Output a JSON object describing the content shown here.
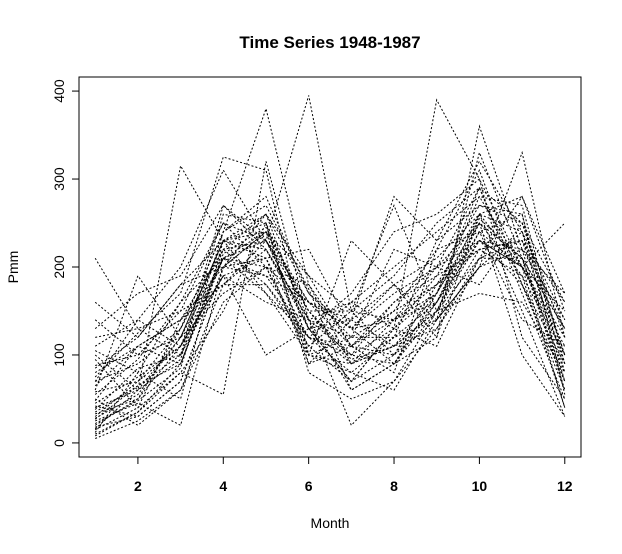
{
  "chart_data": {
    "type": "line",
    "title": "Time Series 1948-1987",
    "xlabel": "Month",
    "ylabel": "Pmm",
    "x": [
      1,
      2,
      3,
      4,
      5,
      6,
      7,
      8,
      9,
      10,
      11,
      12
    ],
    "xticks": [
      2,
      4,
      6,
      8,
      10,
      12
    ],
    "yticks": [
      0,
      100,
      200,
      300,
      400
    ],
    "xlim": [
      0.62,
      12.38
    ],
    "ylim": [
      -16,
      416
    ],
    "line_style": "dotted",
    "line_color": "#000000",
    "grid": false,
    "series": [
      {
        "values": [
          10,
          35,
          90,
          215,
          245,
          150,
          95,
          110,
          170,
          255,
          210,
          70
        ]
      },
      {
        "values": [
          20,
          50,
          110,
          230,
          260,
          170,
          130,
          140,
          200,
          290,
          250,
          100
        ]
      },
      {
        "values": [
          50,
          20,
          60,
          180,
          220,
          140,
          60,
          90,
          150,
          240,
          200,
          40
        ]
      },
      {
        "values": [
          80,
          110,
          140,
          200,
          190,
          120,
          100,
          160,
          190,
          220,
          230,
          130
        ]
      },
      {
        "values": [
          30,
          70,
          130,
          240,
          380,
          180,
          110,
          80,
          220,
          310,
          180,
          90
        ]
      },
      {
        "values": [
          120,
          130,
          100,
          210,
          230,
          395,
          150,
          100,
          160,
          230,
          200,
          150
        ]
      },
      {
        "values": [
          5,
          25,
          60,
          160,
          200,
          110,
          70,
          130,
          390,
          300,
          120,
          50
        ]
      },
      {
        "values": [
          40,
          60,
          315,
          230,
          250,
          90,
          140,
          180,
          140,
          330,
          210,
          60
        ]
      },
      {
        "values": [
          60,
          190,
          120,
          210,
          170,
          100,
          120,
          220,
          200,
          180,
          250,
          160
        ]
      },
      {
        "values": [
          210,
          130,
          150,
          250,
          200,
          180,
          90,
          120,
          160,
          260,
          240,
          100
        ]
      },
      {
        "values": [
          15,
          40,
          80,
          55,
          320,
          140,
          20,
          70,
          130,
          210,
          280,
          170
        ]
      },
      {
        "values": [
          110,
          140,
          200,
          310,
          230,
          160,
          130,
          90,
          120,
          360,
          220,
          140
        ]
      },
      {
        "values": [
          25,
          45,
          20,
          200,
          210,
          90,
          110,
          150,
          180,
          230,
          180,
          60
        ]
      },
      {
        "values": [
          70,
          90,
          130,
          220,
          180,
          120,
          80,
          60,
          140,
          200,
          330,
          120
        ]
      },
      {
        "values": [
          35,
          65,
          100,
          270,
          230,
          130,
          90,
          110,
          150,
          250,
          210,
          80
        ]
      },
      {
        "values": [
          85,
          120,
          180,
          200,
          240,
          100,
          230,
          180,
          120,
          260,
          200,
          250
        ]
      },
      {
        "values": [
          45,
          75,
          110,
          190,
          160,
          140,
          160,
          200,
          240,
          280,
          200,
          120
        ]
      },
      {
        "values": [
          18,
          30,
          70,
          200,
          260,
          190,
          150,
          140,
          170,
          250,
          100,
          30
        ]
      },
      {
        "values": [
          55,
          95,
          160,
          250,
          230,
          130,
          70,
          100,
          180,
          220,
          230,
          90
        ]
      },
      {
        "values": [
          12,
          80,
          50,
          230,
          210,
          120,
          110,
          160,
          200,
          250,
          190,
          40
        ]
      },
      {
        "values": [
          100,
          60,
          120,
          170,
          200,
          160,
          140,
          110,
          130,
          200,
          220,
          170
        ]
      },
      {
        "values": [
          65,
          110,
          90,
          210,
          240,
          150,
          100,
          130,
          170,
          290,
          180,
          70
        ]
      },
      {
        "values": [
          28,
          55,
          120,
          230,
          220,
          140,
          120,
          150,
          220,
          240,
          140,
          110
        ]
      },
      {
        "values": [
          140,
          100,
          150,
          180,
          180,
          110,
          150,
          270,
          150,
          210,
          210,
          130
        ]
      },
      {
        "values": [
          22,
          48,
          85,
          240,
          270,
          175,
          60,
          90,
          160,
          240,
          260,
          55
        ]
      },
      {
        "values": [
          75,
          125,
          170,
          325,
          310,
          100,
          80,
          120,
          140,
          200,
          240,
          140
        ]
      },
      {
        "values": [
          38,
          85,
          100,
          190,
          100,
          130,
          170,
          240,
          260,
          300,
          200,
          100
        ]
      },
      {
        "values": [
          95,
          40,
          140,
          220,
          230,
          150,
          90,
          110,
          150,
          170,
          160,
          80
        ]
      },
      {
        "values": [
          58,
          70,
          110,
          210,
          190,
          160,
          130,
          180,
          210,
          260,
          280,
          150
        ]
      },
      {
        "values": [
          8,
          35,
          80,
          150,
          250,
          80,
          50,
          70,
          150,
          230,
          220,
          60
        ]
      },
      {
        "values": [
          130,
          170,
          190,
          270,
          220,
          130,
          140,
          280,
          230,
          270,
          250,
          120
        ]
      },
      {
        "values": [
          42,
          30,
          70,
          200,
          240,
          190,
          110,
          140,
          180,
          260,
          150,
          30
        ]
      },
      {
        "values": [
          88,
          100,
          120,
          230,
          170,
          120,
          160,
          130,
          110,
          210,
          230,
          160
        ]
      },
      {
        "values": [
          16,
          60,
          95,
          260,
          250,
          140,
          100,
          90,
          170,
          280,
          270,
          90
        ]
      },
      {
        "values": [
          70,
          140,
          110,
          190,
          210,
          220,
          130,
          170,
          200,
          230,
          200,
          110
        ]
      },
      {
        "values": [
          33,
          50,
          130,
          240,
          280,
          170,
          120,
          120,
          230,
          320,
          240,
          70
        ]
      },
      {
        "values": [
          105,
          80,
          160,
          210,
          200,
          100,
          90,
          140,
          160,
          250,
          210,
          130
        ]
      },
      {
        "values": [
          48,
          110,
          140,
          180,
          230,
          150,
          150,
          190,
          250,
          290,
          170,
          50
        ]
      },
      {
        "values": [
          160,
          120,
          180,
          230,
          240,
          160,
          110,
          100,
          140,
          220,
          190,
          100
        ]
      },
      {
        "values": [
          27,
          65,
          90,
          220,
          260,
          130,
          70,
          130,
          190,
          270,
          260,
          80
        ]
      }
    ]
  }
}
